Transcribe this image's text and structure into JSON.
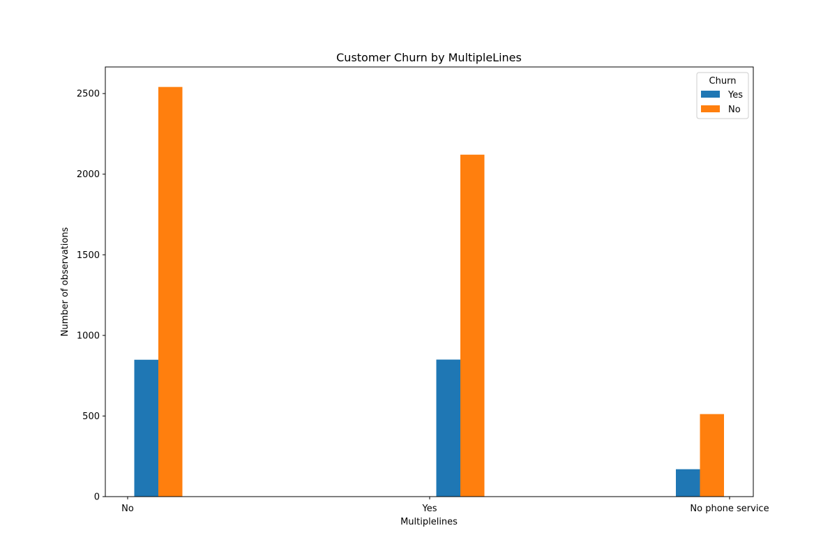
{
  "chart_data": {
    "type": "bar",
    "title": "Customer Churn by MultipleLines",
    "xlabel": "Multiplelines",
    "ylabel": "Number of observations",
    "categories": [
      "No",
      "Yes",
      "No phone service"
    ],
    "series": [
      {
        "name": "Yes",
        "values": [
          849,
          850,
          170
        ],
        "color": "#1f77b4"
      },
      {
        "name": "No",
        "values": [
          2541,
          2121,
          512
        ],
        "color": "#ff7f0e"
      }
    ],
    "ylim": [
      0,
      2665
    ],
    "yticks": [
      0,
      500,
      1000,
      1500,
      2000,
      2500
    ],
    "legend": {
      "title": "Churn",
      "position": "top-right"
    },
    "grid": false
  }
}
